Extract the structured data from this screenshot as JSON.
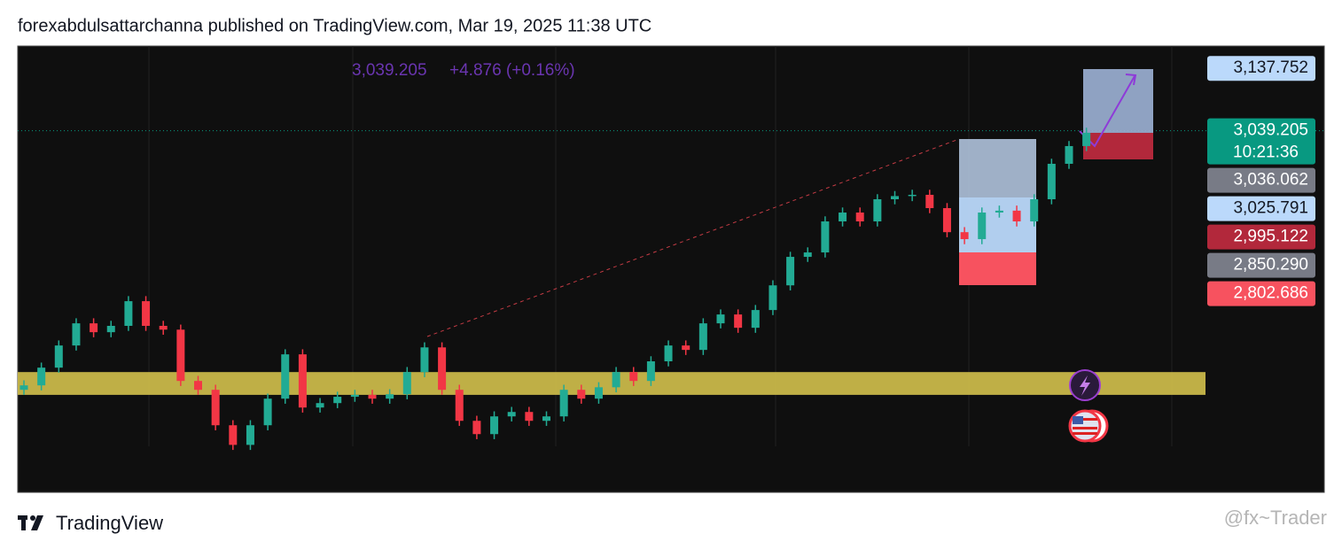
{
  "header": "forexabdulsattarchanna published on TradingView.com, Mar 19, 2025 11:38 UTC",
  "footer": {
    "brand": "TradingView",
    "watermark": "@fx~Trader"
  },
  "chart_data": {
    "type": "candlestick",
    "legend": {
      "price": "3,039.205",
      "change": "+4.876 (+0.16%)"
    },
    "ylim": [
      2468,
      3173
    ],
    "up_color": "#22ab94",
    "down_color": "#f23645",
    "zone": [
      2622,
      2658
    ],
    "current_price": 3039.205,
    "open": [
      2630,
      2637,
      2665,
      2700,
      2735,
      2721,
      2731,
      2770,
      2731,
      2725,
      2644,
      2630,
      2574,
      2543,
      2574,
      2616,
      2686,
      2602,
      2609,
      2619,
      2622,
      2616,
      2623,
      2658,
      2697,
      2630,
      2581,
      2560,
      2588,
      2595,
      2581,
      2588,
      2630,
      2616,
      2634,
      2658,
      2644,
      2675,
      2700,
      2693,
      2735,
      2749,
      2728,
      2756,
      2795,
      2840,
      2847,
      2896,
      2910,
      2896,
      2931,
      2936,
      2938,
      2917,
      2879,
      2868,
      2910,
      2913,
      2896,
      2931,
      2987,
      3015
    ],
    "high": [
      2645,
      2673,
      2708,
      2743,
      2743,
      2739,
      2778,
      2778,
      2739,
      2733,
      2652,
      2638,
      2582,
      2582,
      2624,
      2694,
      2694,
      2617,
      2627,
      2630,
      2630,
      2631,
      2666,
      2705,
      2705,
      2638,
      2589,
      2596,
      2603,
      2603,
      2596,
      2638,
      2638,
      2642,
      2666,
      2666,
      2683,
      2708,
      2708,
      2743,
      2757,
      2757,
      2764,
      2803,
      2848,
      2855,
      2904,
      2918,
      2918,
      2939,
      2944,
      2946,
      2946,
      2925,
      2887,
      2918,
      2921,
      2921,
      2939,
      2995,
      3023,
      3044
    ],
    "low": [
      2622,
      2629,
      2657,
      2692,
      2713,
      2713,
      2723,
      2723,
      2717,
      2636,
      2622,
      2566,
      2535,
      2535,
      2566,
      2608,
      2594,
      2594,
      2601,
      2611,
      2608,
      2608,
      2615,
      2650,
      2622,
      2573,
      2552,
      2552,
      2580,
      2573,
      2573,
      2580,
      2608,
      2608,
      2626,
      2636,
      2636,
      2667,
      2685,
      2685,
      2727,
      2720,
      2720,
      2748,
      2787,
      2832,
      2839,
      2888,
      2888,
      2888,
      2923,
      2928,
      2909,
      2871,
      2860,
      2860,
      2902,
      2888,
      2888,
      2923,
      2979,
      3007
    ],
    "close": [
      2637,
      2665,
      2700,
      2735,
      2721,
      2731,
      2770,
      2731,
      2725,
      2644,
      2630,
      2574,
      2543,
      2574,
      2616,
      2686,
      2602,
      2609,
      2619,
      2622,
      2616,
      2623,
      2658,
      2697,
      2630,
      2581,
      2560,
      2588,
      2595,
      2581,
      2588,
      2630,
      2616,
      2634,
      2658,
      2644,
      2675,
      2700,
      2693,
      2735,
      2749,
      2728,
      2756,
      2795,
      2840,
      2847,
      2896,
      2910,
      2896,
      2931,
      2936,
      2938,
      2917,
      2879,
      2868,
      2910,
      2913,
      2896,
      2931,
      2987,
      3015,
      3036
    ],
    "price_labels": [
      {
        "value": 3137.752,
        "label": "3,137.752",
        "color": "#bbd9fb",
        "text_color": "#131722"
      },
      {
        "value": 3039.205,
        "label": "3,039.205",
        "color": "#089981",
        "text_color": "#ffffff",
        "countdown": "10:21:36"
      },
      {
        "value": 3036.062,
        "label": "3,036.062",
        "color": "#787b86",
        "text_color": "#ffffff"
      },
      {
        "value": 3025.791,
        "label": "3,025.791",
        "color": "#bbd9fb",
        "text_color": "#131722"
      },
      {
        "value": 2995.122,
        "label": "2,995.122",
        "color": "#b2283b",
        "text_color": "#ffffff"
      },
      {
        "value": 2850.29,
        "label": "2,850.290",
        "color": "#787b86",
        "text_color": "#ffffff"
      },
      {
        "value": 2802.686,
        "label": "2,802.686",
        "color": "#f7525f",
        "text_color": "#ffffff"
      }
    ]
  }
}
